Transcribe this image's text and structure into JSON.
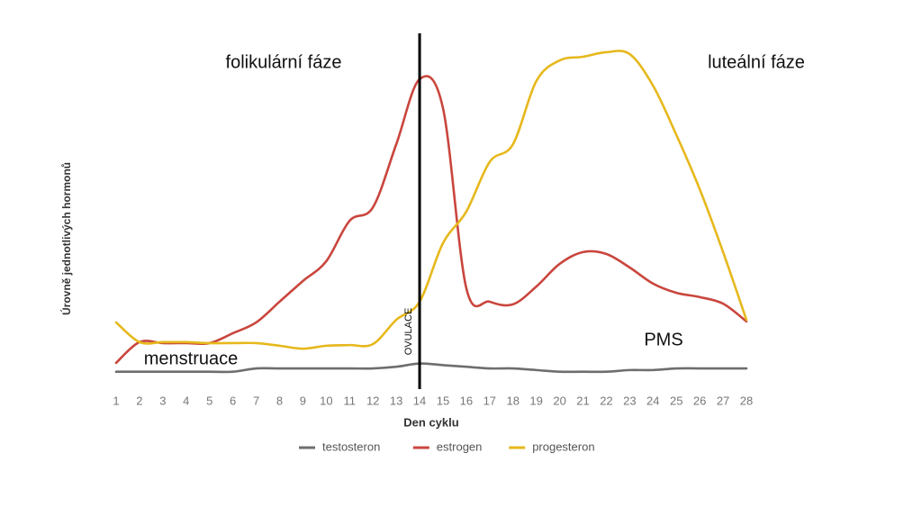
{
  "chart_data": {
    "type": "line",
    "x": [
      1,
      2,
      3,
      4,
      5,
      6,
      7,
      8,
      9,
      10,
      11,
      12,
      13,
      14,
      15,
      16,
      17,
      18,
      19,
      20,
      21,
      22,
      23,
      24,
      25,
      26,
      27,
      28
    ],
    "xlim": [
      1,
      28
    ],
    "xticks": [
      1,
      2,
      3,
      4,
      5,
      6,
      7,
      8,
      9,
      10,
      11,
      12,
      13,
      14,
      15,
      16,
      17,
      18,
      19,
      20,
      21,
      22,
      23,
      24,
      25,
      26,
      27,
      28
    ],
    "ylim": [
      0,
      100
    ],
    "x_label": "Den cyklu",
    "y_label": "Úrovně jednotlivých hormonů",
    "series": [
      {
        "name": "testosteron",
        "color": "#6e6e6e",
        "values": [
          2,
          2,
          2,
          2,
          2,
          2,
          3,
          3,
          3,
          3,
          3,
          3,
          3.5,
          4.5,
          4,
          3.5,
          3,
          3,
          2.5,
          2,
          2,
          2,
          2.5,
          2.5,
          3,
          3,
          3,
          3
        ]
      },
      {
        "name": "estrogen",
        "color": "#c9463d",
        "values": [
          4.7,
          11,
          10.7,
          10.7,
          10.7,
          13.7,
          17,
          23.3,
          29.6,
          35.6,
          47.9,
          52,
          71.2,
          91,
          82.2,
          27.4,
          23.3,
          22.5,
          27.9,
          34.8,
          38.4,
          37.8,
          33.7,
          28.8,
          26,
          24.7,
          22.7,
          17.3
        ]
      },
      {
        "name": "progesteron",
        "color": "#e6b81c",
        "values": [
          17,
          11,
          11,
          11,
          10.7,
          10.7,
          10.7,
          9.9,
          9,
          9.9,
          10.1,
          10.4,
          17.8,
          23.3,
          41.1,
          50.7,
          65.8,
          71.2,
          90.4,
          96.7,
          97.8,
          99.2,
          98.6,
          89,
          74,
          57.5,
          38.4,
          17.8
        ]
      }
    ],
    "vertical_line": {
      "x": 14,
      "label": "OVULACE",
      "color": "#000000"
    },
    "annotations": [
      "folikulární fáze",
      "luteální fáze",
      "menstruace",
      "PMS"
    ],
    "legend": "bottom"
  }
}
